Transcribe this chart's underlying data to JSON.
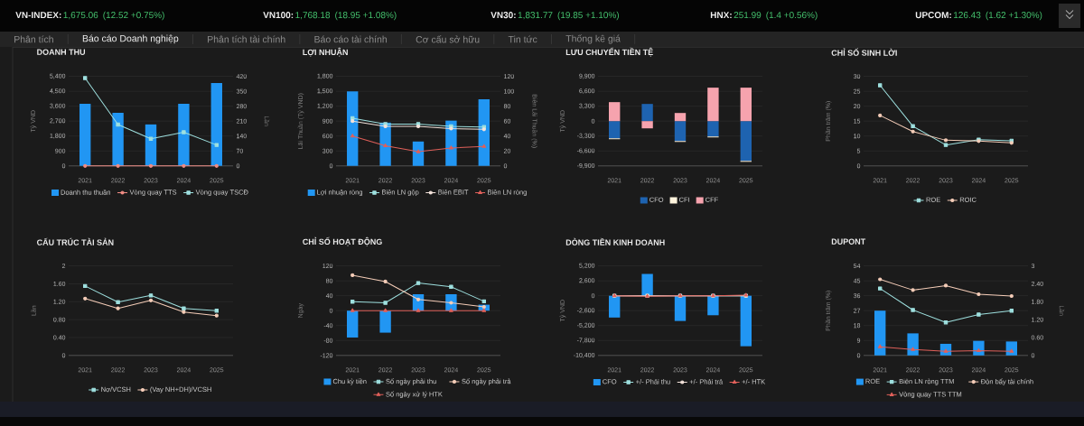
{
  "chart_data": [
    {
      "type": "other",
      "annotations": [
        "VN-INDEX:",
        "1,675.06",
        "(12.52 +0.75%)",
        "VN100:",
        "1,768.18",
        "(18.95 +1.08%)",
        "VN30:",
        "1,831.77",
        "(19.85 +1.10%)",
        "HNX:",
        "251.99",
        "(1.4 +0.56%)",
        "UPCOM:",
        "126.43",
        "(1.62 +1.30%)"
      ]
    },
    {
      "type": "other",
      "annotations": [
        "Phân tích",
        "Báo cáo Doanh nghiệp",
        "Phân tích tài chính",
        "Báo cáo tài chính",
        "Cơ cấu sở hữu",
        "Tin tức",
        "Thống kê giá"
      ]
    },
    {
      "type": "bar",
      "title": "DOANH THU",
      "categories": [
        "2021",
        "2022",
        "2023",
        "2024",
        "2025"
      ],
      "ylabel": "Tỷ VND",
      "y2label": "Lần",
      "series": [
        {
          "name": "Doanh thu thuần",
          "type": "bar",
          "color": "#2196f3",
          "values": [
            3750,
            3200,
            2500,
            3750,
            5000
          ]
        },
        {
          "name": "Vòng quay TTS",
          "type": "line",
          "axis": "y2",
          "marker": "circle",
          "color": "#f08c84",
          "values": [
            0,
            0,
            0,
            0,
            0
          ]
        },
        {
          "name": "Vòng quay TSCĐ",
          "type": "line",
          "axis": "y2",
          "marker": "square",
          "color": "#9ee0df",
          "values": [
            412,
            194,
            127,
            158,
            98
          ]
        }
      ],
      "ylim": [
        0,
        5400
      ],
      "yticks": [
        0,
        900,
        {
          "value": 1800,
          "label": "1,800"
        },
        {
          "value": 2700,
          "label": "2,700"
        },
        {
          "value": 3600,
          "label": "3,600"
        },
        {
          "value": 4500,
          "label": "4,500"
        },
        {
          "value": 5400,
          "label": "5,400"
        }
      ],
      "y2lim": [
        0,
        420
      ],
      "y2ticks": [
        0,
        70,
        140,
        210,
        280,
        350,
        420
      ],
      "grid": "y",
      "legend": "bottom"
    },
    {
      "type": "bar",
      "title": "LỢI NHUẬN",
      "categories": [
        "2021",
        "2022",
        "2023",
        "2024",
        "2025"
      ],
      "ylabel": "Lãi Thuần (Tỷ VND)",
      "y2label": "Biên Lãi Thuần (%)",
      "series": [
        {
          "name": "Lợi nhuận ròng",
          "type": "bar",
          "color": "#2196f3",
          "values": [
            1500,
            870,
            490,
            910,
            1340
          ]
        },
        {
          "name": "Biên LN gộp",
          "type": "line",
          "axis": "y2",
          "marker": "square",
          "color": "#9ee0df",
          "values": [
            64,
            56,
            56,
            53,
            52
          ]
        },
        {
          "name": "Biên EBIT",
          "type": "line",
          "axis": "y2",
          "marker": "circle",
          "color": "#f3e2da",
          "values": [
            60,
            53,
            53,
            50,
            49
          ]
        },
        {
          "name": "Biên LN ròng",
          "type": "line",
          "axis": "y2",
          "marker": "triangle",
          "color": "#e0605a",
          "values": [
            40,
            27,
            19,
            24,
            26
          ]
        }
      ],
      "ylim": [
        0,
        1800
      ],
      "yticks": [
        0,
        300,
        600,
        900,
        {
          "value": 1200,
          "label": "1,200"
        },
        {
          "value": 1500,
          "label": "1,500"
        },
        {
          "value": 1800,
          "label": "1,800"
        }
      ],
      "y2lim": [
        0,
        120
      ],
      "y2ticks": [
        0,
        20,
        40,
        60,
        80,
        100,
        120
      ],
      "grid": "y",
      "legend": "bottom"
    },
    {
      "type": "bar",
      "title": "LƯU CHUYỂN TIỀN TỆ",
      "categories": [
        "2021",
        "2022",
        "2023",
        "2024",
        "2025"
      ],
      "ylabel": "Tỷ VND",
      "stacked": true,
      "series": [
        {
          "name": "CFO",
          "color": "#1e63b0",
          "values": [
            -3800,
            3800,
            -4400,
            -3400,
            -8800
          ]
        },
        {
          "name": "CFI",
          "color": "#fff3dc",
          "values": [
            -200,
            0,
            -200,
            -200,
            -200
          ]
        },
        {
          "name": "CFF",
          "color": "#f6a3ae",
          "values": [
            4200,
            -1600,
            1800,
            7400,
            7400
          ]
        }
      ],
      "ylim": [
        -9900,
        9900
      ],
      "yticks": [
        {
          "value": -9900,
          "label": "-9,900"
        },
        {
          "value": -6600,
          "label": "-6,600"
        },
        {
          "value": -3300,
          "label": "-3,300"
        },
        0,
        {
          "value": 3300,
          "label": "3,300"
        },
        {
          "value": 6600,
          "label": "6,600"
        },
        {
          "value": 9900,
          "label": "9,900"
        }
      ],
      "grid": "y",
      "legend": "bottom"
    },
    {
      "type": "line",
      "title": "CHỈ SỐ SINH LỜI",
      "categories": [
        "2021",
        "2022",
        "2023",
        "2024",
        "2025"
      ],
      "ylabel": "Phần trăm (%)",
      "series": [
        {
          "name": "ROE",
          "marker": "square",
          "color": "#9ee0df",
          "values": [
            27,
            13.3,
            7,
            8.8,
            8.4
          ]
        },
        {
          "name": "ROIC",
          "marker": "circle",
          "color": "#f5cdb8",
          "values": [
            16.9,
            11.5,
            8.6,
            8.3,
            7.7
          ]
        }
      ],
      "ylim": [
        0,
        30
      ],
      "yticks": [
        0,
        5,
        10,
        15,
        20,
        25,
        30
      ],
      "grid": "y",
      "legend": "bottom"
    },
    {
      "type": "line",
      "title": "CẤU TRÚC TÀI SẢN",
      "categories": [
        "2021",
        "2022",
        "2023",
        "2024",
        "2025"
      ],
      "ylabel": "Lần",
      "series": [
        {
          "name": "Nợ/VCSH",
          "marker": "square",
          "color": "#9ee0df",
          "values": [
            1.55,
            1.19,
            1.34,
            1.05,
            1.0
          ]
        },
        {
          "name": "(Vay NH+DH)/VCSH",
          "marker": "circle",
          "color": "#f5cdb8",
          "values": [
            1.27,
            1.05,
            1.23,
            0.97,
            0.89
          ]
        }
      ],
      "ylim": [
        0,
        2
      ],
      "yticks": [
        0,
        {
          "value": 0.4,
          "label": "0.40"
        },
        {
          "value": 0.8,
          "label": "0.80"
        },
        {
          "value": 1.2,
          "label": "1.20"
        },
        {
          "value": 1.6,
          "label": "1.60"
        },
        2
      ],
      "grid": "y",
      "legend": "bottom"
    },
    {
      "type": "bar",
      "title": "CHỈ SỐ HOẠT ĐỘNG",
      "categories": [
        "2021",
        "2022",
        "2023",
        "2024",
        "2025"
      ],
      "ylabel": "Ngày",
      "series": [
        {
          "name": "Chu kỳ tiền",
          "type": "bar",
          "color": "#2196f3",
          "values": [
            -72,
            -59,
            44,
            44,
            16
          ]
        },
        {
          "name": "Số ngày phải thu",
          "type": "line",
          "marker": "square",
          "color": "#9ee0df",
          "values": [
            24,
            21,
            74,
            64,
            25
          ]
        },
        {
          "name": "Số ngày phải trả",
          "type": "line",
          "marker": "circle",
          "color": "#f5cdb8",
          "values": [
            95,
            78,
            30,
            21,
            10
          ]
        },
        {
          "name": "Số ngày xử lý HTK",
          "type": "line",
          "marker": "triangle",
          "color": "#e0605a",
          "values": [
            0,
            0,
            0,
            0,
            0
          ]
        }
      ],
      "ylim": [
        -120,
        120
      ],
      "yticks": [
        -120,
        -80,
        -40,
        0,
        40,
        80,
        120
      ],
      "grid": "y",
      "legend": "bottom"
    },
    {
      "type": "bar",
      "title": "DÒNG TIỀN KINH DOANH",
      "categories": [
        "2021",
        "2022",
        "2023",
        "2024",
        "2025"
      ],
      "ylabel": "Tỷ VND",
      "series": [
        {
          "name": "CFO",
          "type": "bar",
          "color": "#2196f3",
          "values": [
            -3800,
            3800,
            -4400,
            -3400,
            -8800
          ]
        },
        {
          "name": "+/- Phải thu",
          "type": "line",
          "marker": "square",
          "color": "#9ee0df",
          "values": [
            0,
            0,
            0,
            0,
            0
          ]
        },
        {
          "name": "+/- Phải trả",
          "type": "line",
          "marker": "circle",
          "color": "#f3e2da",
          "values": [
            0,
            0,
            0,
            0,
            0
          ]
        },
        {
          "name": "+/- HTK",
          "type": "line",
          "marker": "triangle",
          "color": "#e0605a",
          "values": [
            0,
            -100,
            0,
            0,
            100
          ]
        }
      ],
      "ylim": [
        -10400,
        5200
      ],
      "yticks": [
        {
          "value": -10400,
          "label": "-10,400"
        },
        {
          "value": -7800,
          "label": "-7,800"
        },
        {
          "value": -5200,
          "label": "-5,200"
        },
        {
          "value": -2600,
          "label": "-2,600"
        },
        0,
        {
          "value": 2600,
          "label": "2,600"
        },
        {
          "value": 5200,
          "label": "5,200"
        }
      ],
      "grid": "y",
      "legend": "bottom"
    },
    {
      "type": "bar",
      "title": "DUPONT",
      "categories": [
        "2021",
        "2022",
        "2023",
        "2024",
        "2025"
      ],
      "ylabel": "Phần trăm (%)",
      "y2label": "Lần",
      "series": [
        {
          "name": "ROE",
          "type": "bar",
          "color": "#2196f3",
          "values": [
            27,
            13.3,
            7,
            8.8,
            8.4
          ]
        },
        {
          "name": "Biên LN ròng TTM",
          "type": "line",
          "marker": "square",
          "color": "#9ee0df",
          "values": [
            40.4,
            27.4,
            19.9,
            24.7,
            27
          ]
        },
        {
          "name": "Đòn bẩy tài chính",
          "type": "line",
          "axis": "y2",
          "marker": "circle",
          "color": "#f5cdb8",
          "values": [
            2.55,
            2.19,
            2.34,
            2.05,
            1.99
          ]
        },
        {
          "name": "Vòng quay TTS TTM",
          "type": "line",
          "axis": "y2",
          "marker": "triangle",
          "color": "#e0605a",
          "values": [
            0.29,
            0.2,
            0.14,
            0.16,
            0.14
          ]
        }
      ],
      "ylim": [
        0,
        54
      ],
      "yticks": [
        0,
        9,
        18,
        27,
        36,
        45,
        54
      ],
      "y2lim": [
        0,
        3
      ],
      "y2ticks": [
        0,
        {
          "value": 0.6,
          "label": "0.60"
        },
        {
          "value": 1.2,
          "label": "1.20"
        },
        {
          "value": 1.8,
          "label": "1.80"
        },
        {
          "value": 2.4,
          "label": "2.40"
        },
        3
      ],
      "grid": "y",
      "legend": "bottom"
    }
  ]
}
